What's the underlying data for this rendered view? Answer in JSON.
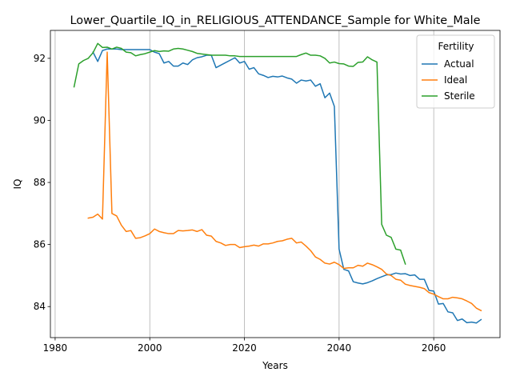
{
  "chart_data": {
    "type": "line",
    "title": "Lower_Quartile_IQ_in_RELIGIOUS_ATTENDANCE_Sample for White_Male",
    "xlabel": "Years",
    "ylabel": "IQ",
    "xlim": [
      1979,
      2074
    ],
    "ylim": [
      83.0,
      92.9
    ],
    "xticks": [
      1980,
      2000,
      2020,
      2040,
      2060
    ],
    "yticks": [
      84,
      86,
      88,
      90,
      92
    ],
    "grid": "x-only",
    "legend": {
      "title": "Fertility",
      "position": "top-right"
    },
    "series": [
      {
        "name": "Actual",
        "color": "#1f77b4",
        "points": [
          [
            1988,
            92.2
          ],
          [
            1989,
            91.9
          ],
          [
            1990,
            92.25
          ],
          [
            1991,
            92.3
          ],
          [
            1992,
            92.3
          ],
          [
            1993,
            92.3
          ],
          [
            1994,
            92.28
          ],
          [
            1995,
            92.28
          ],
          [
            1996,
            92.28
          ],
          [
            1997,
            92.28
          ],
          [
            1998,
            92.28
          ],
          [
            1999,
            92.28
          ],
          [
            2000,
            92.28
          ],
          [
            2001,
            92.2
          ],
          [
            2002,
            92.15
          ],
          [
            2003,
            91.85
          ],
          [
            2004,
            91.9
          ],
          [
            2005,
            91.75
          ],
          [
            2006,
            91.75
          ],
          [
            2007,
            91.85
          ],
          [
            2008,
            91.8
          ],
          [
            2009,
            91.95
          ],
          [
            2010,
            92.02
          ],
          [
            2011,
            92.05
          ],
          [
            2012,
            92.1
          ],
          [
            2013,
            92.1
          ],
          [
            2014,
            91.7
          ],
          [
            2015,
            91.78
          ],
          [
            2016,
            91.86
          ],
          [
            2017,
            91.94
          ],
          [
            2018,
            92.02
          ],
          [
            2019,
            91.85
          ],
          [
            2020,
            91.9
          ],
          [
            2021,
            91.65
          ],
          [
            2022,
            91.7
          ],
          [
            2023,
            91.5
          ],
          [
            2024,
            91.45
          ],
          [
            2025,
            91.38
          ],
          [
            2026,
            91.42
          ],
          [
            2027,
            91.4
          ],
          [
            2028,
            91.43
          ],
          [
            2029,
            91.37
          ],
          [
            2030,
            91.33
          ],
          [
            2031,
            91.2
          ],
          [
            2032,
            91.3
          ],
          [
            2033,
            91.27
          ],
          [
            2034,
            91.3
          ],
          [
            2035,
            91.1
          ],
          [
            2036,
            91.18
          ],
          [
            2037,
            90.73
          ],
          [
            2038,
            90.88
          ],
          [
            2039,
            90.45
          ],
          [
            2040,
            85.85
          ],
          [
            2041,
            85.2
          ],
          [
            2042,
            85.15
          ],
          [
            2043,
            84.8
          ],
          [
            2044,
            84.76
          ],
          [
            2045,
            84.73
          ],
          [
            2046,
            84.77
          ],
          [
            2047,
            84.83
          ],
          [
            2048,
            84.9
          ],
          [
            2049,
            84.96
          ],
          [
            2050,
            85.02
          ],
          [
            2051,
            85.03
          ],
          [
            2052,
            85.08
          ],
          [
            2053,
            85.05
          ],
          [
            2054,
            85.06
          ],
          [
            2055,
            85.0
          ],
          [
            2056,
            85.02
          ],
          [
            2057,
            84.88
          ],
          [
            2058,
            84.88
          ],
          [
            2059,
            84.52
          ],
          [
            2060,
            84.5
          ],
          [
            2061,
            84.08
          ],
          [
            2062,
            84.1
          ],
          [
            2063,
            83.83
          ],
          [
            2064,
            83.8
          ],
          [
            2065,
            83.55
          ],
          [
            2066,
            83.6
          ],
          [
            2067,
            83.48
          ],
          [
            2068,
            83.5
          ],
          [
            2069,
            83.47
          ],
          [
            2070,
            83.58
          ]
        ]
      },
      {
        "name": "Ideal",
        "color": "#ff7f0e",
        "points": [
          [
            1987,
            86.85
          ],
          [
            1988,
            86.88
          ],
          [
            1989,
            86.98
          ],
          [
            1990,
            86.82
          ],
          [
            1991,
            92.2
          ],
          [
            1992,
            87.0
          ],
          [
            1993,
            86.92
          ],
          [
            1994,
            86.62
          ],
          [
            1995,
            86.42
          ],
          [
            1996,
            86.45
          ],
          [
            1997,
            86.2
          ],
          [
            1998,
            86.22
          ],
          [
            1999,
            86.28
          ],
          [
            2000,
            86.35
          ],
          [
            2001,
            86.5
          ],
          [
            2002,
            86.42
          ],
          [
            2003,
            86.38
          ],
          [
            2004,
            86.35
          ],
          [
            2005,
            86.35
          ],
          [
            2006,
            86.45
          ],
          [
            2007,
            86.44
          ],
          [
            2008,
            86.45
          ],
          [
            2009,
            86.47
          ],
          [
            2010,
            86.42
          ],
          [
            2011,
            86.48
          ],
          [
            2012,
            86.3
          ],
          [
            2013,
            86.27
          ],
          [
            2014,
            86.1
          ],
          [
            2015,
            86.05
          ],
          [
            2016,
            85.97
          ],
          [
            2017,
            86.0
          ],
          [
            2018,
            86.0
          ],
          [
            2019,
            85.9
          ],
          [
            2020,
            85.93
          ],
          [
            2021,
            85.95
          ],
          [
            2022,
            85.98
          ],
          [
            2023,
            85.95
          ],
          [
            2024,
            86.02
          ],
          [
            2025,
            86.02
          ],
          [
            2026,
            86.05
          ],
          [
            2027,
            86.1
          ],
          [
            2028,
            86.12
          ],
          [
            2029,
            86.17
          ],
          [
            2030,
            86.2
          ],
          [
            2031,
            86.05
          ],
          [
            2032,
            86.08
          ],
          [
            2033,
            85.95
          ],
          [
            2034,
            85.8
          ],
          [
            2035,
            85.6
          ],
          [
            2036,
            85.52
          ],
          [
            2037,
            85.4
          ],
          [
            2038,
            85.37
          ],
          [
            2039,
            85.43
          ],
          [
            2040,
            85.35
          ],
          [
            2041,
            85.23
          ],
          [
            2042,
            85.25
          ],
          [
            2043,
            85.25
          ],
          [
            2044,
            85.33
          ],
          [
            2045,
            85.3
          ],
          [
            2046,
            85.4
          ],
          [
            2047,
            85.35
          ],
          [
            2048,
            85.28
          ],
          [
            2049,
            85.2
          ],
          [
            2050,
            85.05
          ],
          [
            2051,
            85.0
          ],
          [
            2052,
            84.88
          ],
          [
            2053,
            84.85
          ],
          [
            2054,
            84.72
          ],
          [
            2055,
            84.68
          ],
          [
            2056,
            84.65
          ],
          [
            2057,
            84.62
          ],
          [
            2058,
            84.58
          ],
          [
            2059,
            84.45
          ],
          [
            2060,
            84.4
          ],
          [
            2061,
            84.32
          ],
          [
            2062,
            84.25
          ],
          [
            2063,
            84.25
          ],
          [
            2064,
            84.3
          ],
          [
            2065,
            84.28
          ],
          [
            2066,
            84.25
          ],
          [
            2067,
            84.18
          ],
          [
            2068,
            84.1
          ],
          [
            2069,
            83.95
          ],
          [
            2070,
            83.87
          ]
        ]
      },
      {
        "name": "Sterile",
        "color": "#2ca02c",
        "points": [
          [
            1984,
            91.08
          ],
          [
            1985,
            91.82
          ],
          [
            1986,
            91.93
          ],
          [
            1987,
            92.0
          ],
          [
            1988,
            92.18
          ],
          [
            1989,
            92.48
          ],
          [
            1990,
            92.35
          ],
          [
            1991,
            92.36
          ],
          [
            1992,
            92.3
          ],
          [
            1993,
            92.36
          ],
          [
            1994,
            92.32
          ],
          [
            1995,
            92.2
          ],
          [
            1996,
            92.18
          ],
          [
            1997,
            92.08
          ],
          [
            1998,
            92.12
          ],
          [
            1999,
            92.15
          ],
          [
            2000,
            92.2
          ],
          [
            2001,
            92.25
          ],
          [
            2002,
            92.22
          ],
          [
            2003,
            92.24
          ],
          [
            2004,
            92.23
          ],
          [
            2005,
            92.3
          ],
          [
            2006,
            92.32
          ],
          [
            2007,
            92.3
          ],
          [
            2008,
            92.26
          ],
          [
            2009,
            92.22
          ],
          [
            2010,
            92.16
          ],
          [
            2011,
            92.14
          ],
          [
            2012,
            92.12
          ],
          [
            2013,
            92.1
          ],
          [
            2014,
            92.1
          ],
          [
            2015,
            92.1
          ],
          [
            2016,
            92.1
          ],
          [
            2017,
            92.08
          ],
          [
            2018,
            92.08
          ],
          [
            2019,
            92.06
          ],
          [
            2020,
            92.06
          ],
          [
            2021,
            92.06
          ],
          [
            2022,
            92.06
          ],
          [
            2023,
            92.06
          ],
          [
            2024,
            92.06
          ],
          [
            2025,
            92.06
          ],
          [
            2026,
            92.06
          ],
          [
            2027,
            92.06
          ],
          [
            2028,
            92.06
          ],
          [
            2029,
            92.06
          ],
          [
            2030,
            92.06
          ],
          [
            2031,
            92.06
          ],
          [
            2032,
            92.12
          ],
          [
            2033,
            92.17
          ],
          [
            2034,
            92.1
          ],
          [
            2035,
            92.1
          ],
          [
            2036,
            92.08
          ],
          [
            2037,
            92.0
          ],
          [
            2038,
            91.85
          ],
          [
            2039,
            91.88
          ],
          [
            2040,
            91.83
          ],
          [
            2041,
            91.82
          ],
          [
            2042,
            91.75
          ],
          [
            2043,
            91.74
          ],
          [
            2044,
            91.87
          ],
          [
            2045,
            91.88
          ],
          [
            2046,
            92.05
          ],
          [
            2047,
            91.95
          ],
          [
            2048,
            91.88
          ],
          [
            2049,
            86.65
          ],
          [
            2050,
            86.3
          ],
          [
            2051,
            86.23
          ],
          [
            2052,
            85.85
          ],
          [
            2053,
            85.82
          ],
          [
            2054,
            85.37
          ]
        ]
      }
    ]
  }
}
